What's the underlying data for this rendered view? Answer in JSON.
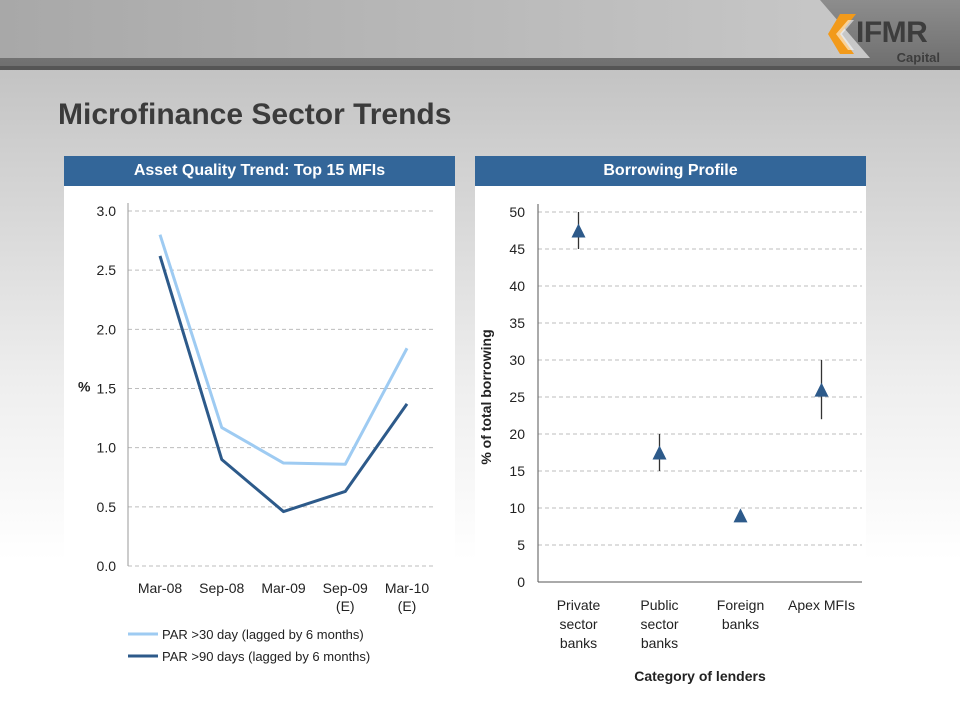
{
  "logo": {
    "main": "IFMR",
    "sub": "Capital"
  },
  "page_title": "Microfinance Sector Trends",
  "colors": {
    "header": "#336699",
    "light_series": "#9ecbf2",
    "dark_series": "#2d5a8a",
    "marker": "#2d5a8a"
  },
  "chart_data": [
    {
      "type": "line",
      "title": "Asset Quality Trend: Top 15 MFIs",
      "ylabel": "%",
      "ylim": [
        0,
        3.0
      ],
      "yticks": [
        "3.0",
        "2.5",
        "2.0",
        "1.5",
        "1.0",
        "0.5",
        "0.0"
      ],
      "categories": [
        "Mar-08",
        "Sep-08",
        "Mar-09",
        "Sep-09",
        "Mar-10"
      ],
      "category_sublabels": [
        "",
        "",
        "",
        "(E)",
        "(E)"
      ],
      "series": [
        {
          "name": "PAR >30 day (lagged by 6 months)",
          "values": [
            2.8,
            1.17,
            0.87,
            0.86,
            1.84
          ]
        },
        {
          "name": "PAR >90 days (lagged by 6 months)",
          "values": [
            2.62,
            0.9,
            0.46,
            0.63,
            1.37
          ]
        }
      ],
      "grid": true
    },
    {
      "type": "scatter",
      "title": "Borrowing Profile",
      "xlabel": "Category of lenders",
      "ylabel": "% of total borrowing",
      "ylim": [
        0,
        50
      ],
      "yticks": [
        "50",
        "45",
        "40",
        "35",
        "30",
        "25",
        "20",
        "15",
        "10",
        "5",
        "0"
      ],
      "categories": [
        [
          "Private",
          "sector",
          "banks"
        ],
        [
          "Public",
          "sector",
          "banks"
        ],
        [
          "Foreign",
          "banks"
        ],
        [
          "Apex MFIs"
        ]
      ],
      "points": [
        {
          "value": 47.5,
          "low": 45,
          "high": 50
        },
        {
          "value": 17.5,
          "low": 15,
          "high": 20
        },
        {
          "value": 9,
          "low": 9,
          "high": 9
        },
        {
          "value": 26,
          "low": 22,
          "high": 30
        }
      ],
      "grid": true
    }
  ]
}
